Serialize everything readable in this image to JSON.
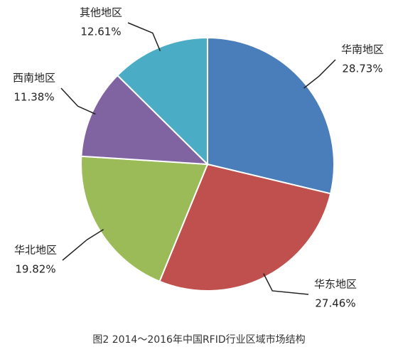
{
  "chart_data": {
    "type": "pie",
    "title": "图2 2014～2016年中国RFID行业区域市场结构",
    "categories": [
      "华南地区",
      "华东地区",
      "华北地区",
      "西南地区",
      "其他地区"
    ],
    "values": [
      28.73,
      27.46,
      19.82,
      11.38,
      12.61
    ],
    "value_labels": [
      "28.73%",
      "27.46%",
      "19.82%",
      "11.38%",
      "12.61%"
    ],
    "colors": [
      "#4a7ebb",
      "#c0504d",
      "#9bbb59",
      "#8064a2",
      "#4bacc6"
    ]
  }
}
